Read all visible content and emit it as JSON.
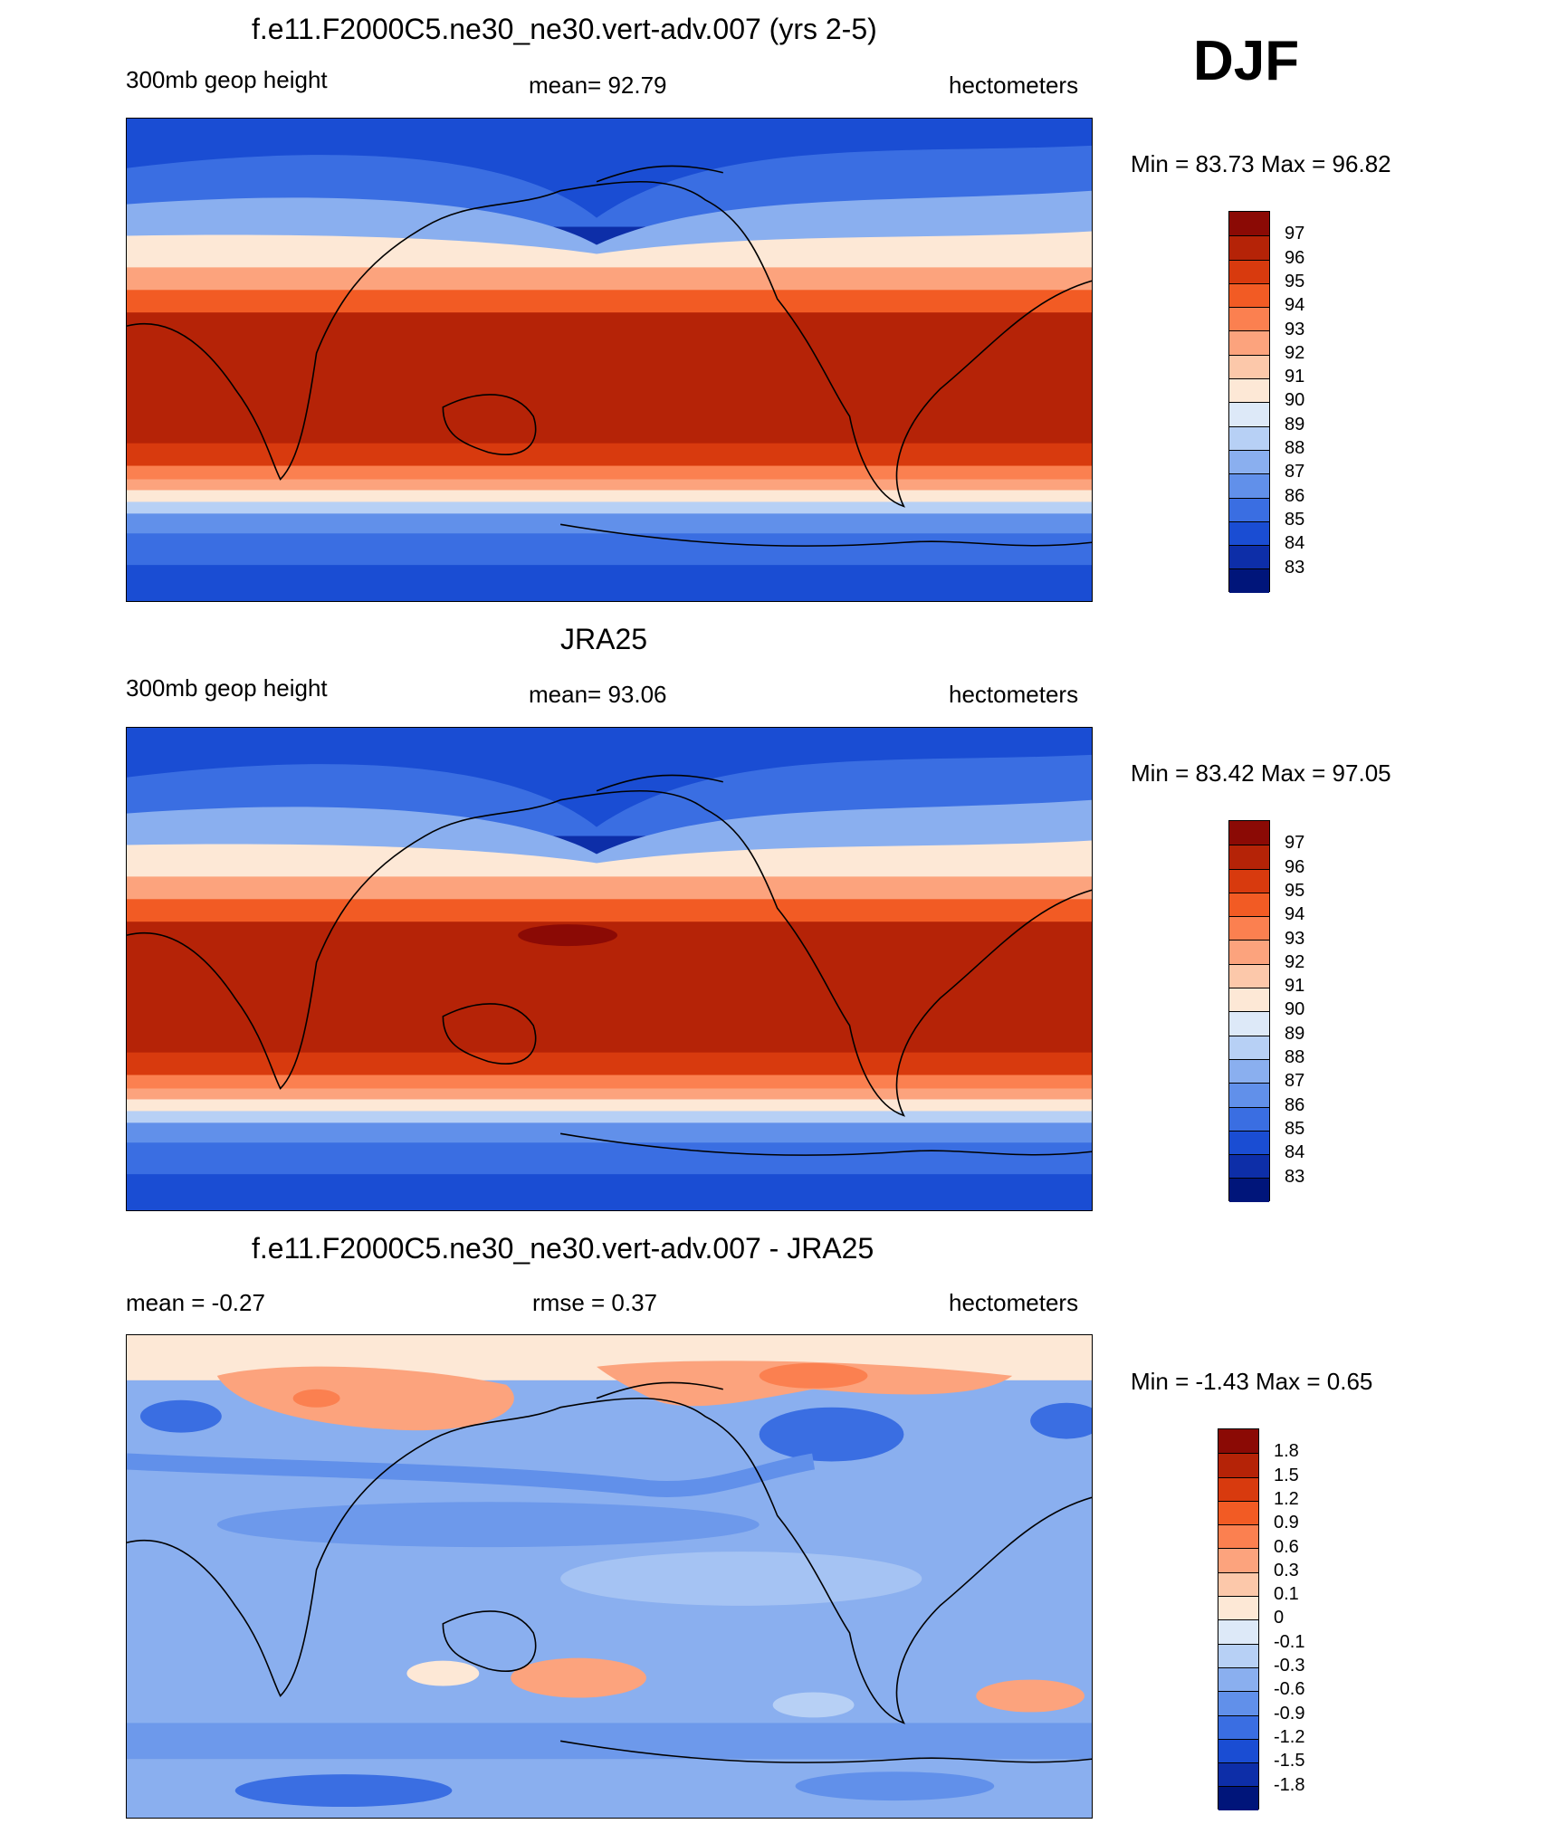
{
  "season": "DJF",
  "panels": [
    {
      "title": "f.e11.F2000C5.ne30_ne30.vert-adv.007 (yrs 2-5)",
      "left": "300mb geop height",
      "center": "mean=  92.79",
      "right": "hectometers",
      "minmax": "Min =  83.73 Max =  96.82"
    },
    {
      "title": "JRA25",
      "left": "300mb geop height",
      "center": "mean=  93.06",
      "right": "hectometers",
      "minmax": "Min =  83.42 Max =  97.05"
    },
    {
      "title": "f.e11.F2000C5.ne30_ne30.vert-adv.007 - JRA25",
      "left": "mean =  -0.27",
      "center": "rmse =   0.37",
      "right": "hectometers",
      "minmax": "Min =  -1.43 Max =   0.65"
    }
  ],
  "colorbars": {
    "height": {
      "labels": [
        "97",
        "96",
        "95",
        "94",
        "93",
        "92",
        "91",
        "90",
        "89",
        "88",
        "87",
        "86",
        "85",
        "84",
        "83"
      ],
      "colors": [
        "#8b0a05",
        "#b52307",
        "#d83a0e",
        "#f25b24",
        "#fb8050",
        "#fca37d",
        "#fcc8aa",
        "#fde8d6",
        "#dde9f8",
        "#b7d0f5",
        "#8aafef",
        "#6190ea",
        "#3a6ee2",
        "#1a4dd3",
        "#0d2ea8",
        "#00157a"
      ]
    },
    "diff": {
      "labels": [
        "1.8",
        "1.5",
        "1.2",
        "0.9",
        "0.6",
        "0.3",
        "0.1",
        "0",
        "-0.1",
        "-0.3",
        "-0.6",
        "-0.9",
        "-1.2",
        "-1.5",
        "-1.8"
      ],
      "colors": [
        "#8b0a05",
        "#b52307",
        "#d83a0e",
        "#f25b24",
        "#fb8050",
        "#fca37d",
        "#fcc8aa",
        "#fde8d6",
        "#dde9f8",
        "#b7d0f5",
        "#8aafef",
        "#6190ea",
        "#3a6ee2",
        "#1a4dd3",
        "#0d2ea8",
        "#00157a"
      ]
    }
  }
}
